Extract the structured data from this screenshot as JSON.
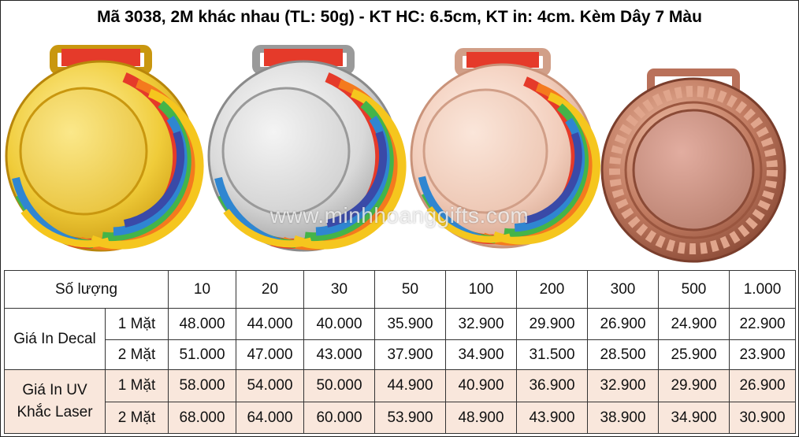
{
  "title": "Mã 3038, 2M khác nhau (TL: 50g) - KT HC: 6.5cm, KT in: 4cm. Kèm Dây 7 Màu",
  "watermark": "www.minhhoanggifts.com",
  "images": [
    {
      "name": "gold-medal-image",
      "color": "#e8c23a"
    },
    {
      "name": "silver-medal-image",
      "color": "#d4d4d4"
    },
    {
      "name": "rose-gold-medal-image",
      "color": "#f2cdbb"
    },
    {
      "name": "bronze-medal-image",
      "color": "#b9715a"
    }
  ],
  "table": {
    "quantity_label": "Số lượng",
    "quantities": [
      "10",
      "20",
      "30",
      "50",
      "100",
      "200",
      "300",
      "500",
      "1.000"
    ],
    "groups": [
      {
        "label": "Giá In Decal",
        "rows": [
          {
            "sides": "1 Mặt",
            "prices": [
              "48.000",
              "44.000",
              "40.000",
              "35.900",
              "32.900",
              "29.900",
              "26.900",
              "24.900",
              "22.900"
            ]
          },
          {
            "sides": "2 Mặt",
            "prices": [
              "51.000",
              "47.000",
              "43.000",
              "37.900",
              "34.900",
              "31.500",
              "28.500",
              "25.900",
              "23.900"
            ]
          }
        ]
      },
      {
        "label": "Giá In UV Khắc Laser",
        "rows": [
          {
            "sides": "1 Mặt",
            "prices": [
              "58.000",
              "54.000",
              "50.000",
              "44.900",
              "40.900",
              "36.900",
              "32.900",
              "29.900",
              "26.900"
            ]
          },
          {
            "sides": "2 Mặt",
            "prices": [
              "68.000",
              "64.000",
              "60.000",
              "53.900",
              "48.900",
              "43.900",
              "38.900",
              "34.900",
              "30.900"
            ]
          }
        ]
      }
    ]
  }
}
